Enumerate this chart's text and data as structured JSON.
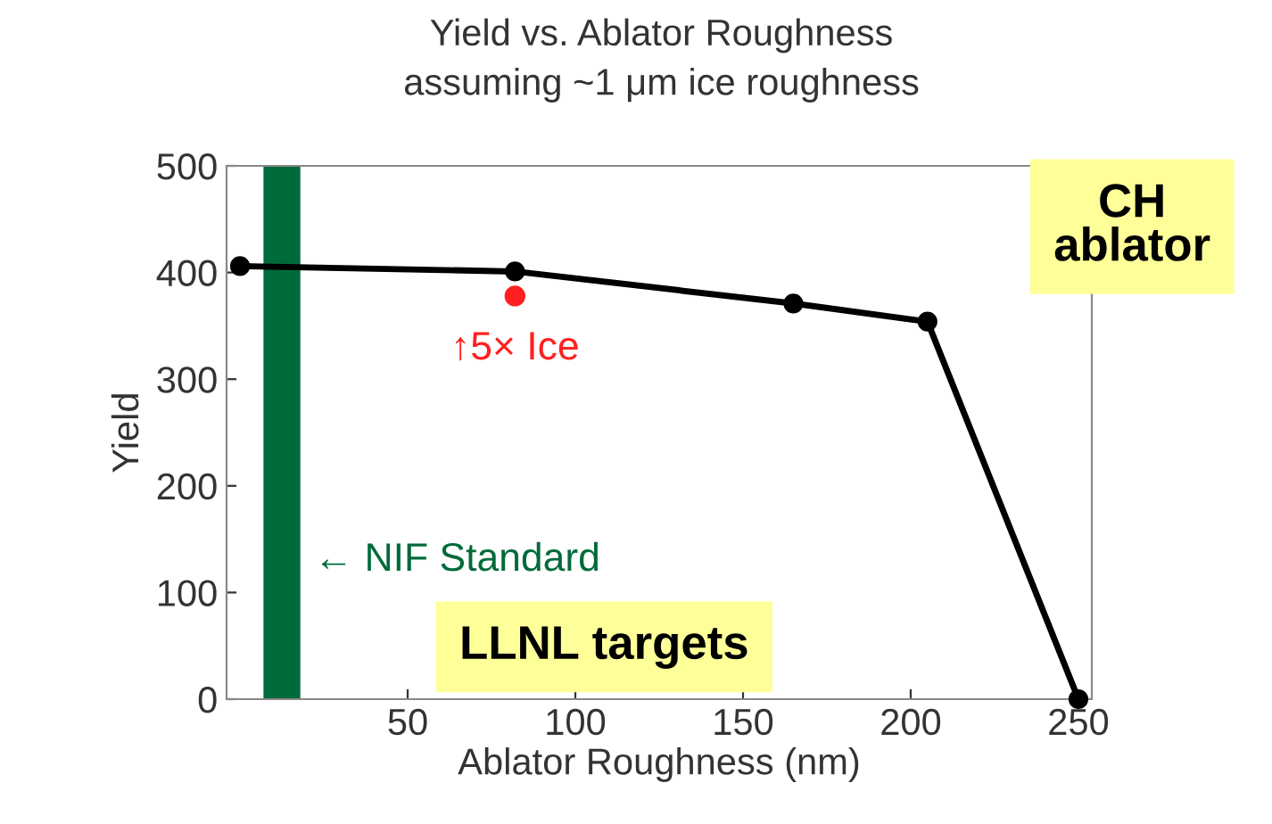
{
  "chart_data": {
    "type": "line",
    "title": "Yield vs. Ablator Roughness",
    "subtitle": "assuming ~1 μm ice roughness",
    "xlabel": "Ablator Roughness (nm)",
    "ylabel": "Yield",
    "series": [
      {
        "color": "#000000",
        "marker": "circle",
        "x": [
          0,
          82,
          165,
          205,
          250
        ],
        "values": [
          406,
          401,
          371,
          354,
          0
        ]
      },
      {
        "type": "scatter",
        "color": "#ff2020",
        "marker": "circle",
        "x": [
          82
        ],
        "values": [
          378
        ]
      }
    ],
    "bands": [
      {
        "axis": "x",
        "from": 7,
        "to": 18,
        "label": "← NIF Standard",
        "color": "#006b3a"
      }
    ],
    "annotations": [
      {
        "text": "↑5× Ice",
        "x": 82,
        "y": 378
      },
      "LLNL targets",
      "CH\nablator"
    ],
    "xlim": [
      -4,
      254
    ],
    "ylim": [
      0,
      500
    ],
    "xticks": [
      50,
      100,
      150,
      200,
      250
    ],
    "yticks": [
      0,
      100,
      200,
      300,
      400,
      500
    ],
    "grid": false
  }
}
